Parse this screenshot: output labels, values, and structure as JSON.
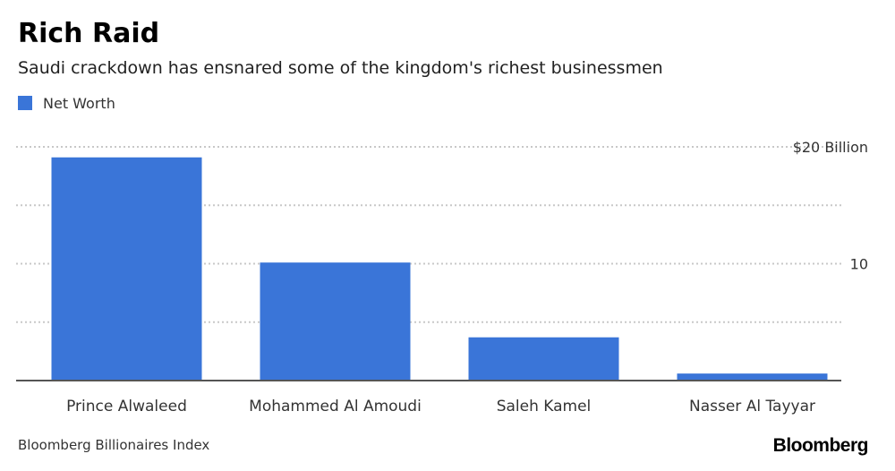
{
  "header": {
    "title": "Rich Raid",
    "subtitle": "Saudi crackdown has ensnared some of the kingdom's richest businessmen"
  },
  "footer": {
    "source": "Bloomberg Billionaires Index",
    "brand": "Bloomberg"
  },
  "colors": {
    "bar": "#3a75d8",
    "grid": "#c8c8c8",
    "axis": "#555555",
    "text": "#333333"
  },
  "chart_data": {
    "type": "bar",
    "categories": [
      "Prince Alwaleed",
      "Mohammed Al Amoudi",
      "Saleh Kamel",
      "Nasser Al Tayyar"
    ],
    "series": [
      {
        "name": "Net Worth",
        "values": [
          19.1,
          10.1,
          3.7,
          0.6
        ]
      }
    ],
    "title": "Rich Raid",
    "subtitle": "Saudi crackdown has ensnared some of the kingdom's richest businessmen",
    "xlabel": "",
    "ylabel": "",
    "ylim": [
      0,
      20
    ],
    "ytick_values": [
      0,
      5,
      10,
      15,
      20
    ],
    "ytick_labels": [
      {
        "value": 20,
        "label": "$20 Billion"
      },
      {
        "value": 10,
        "label": "10"
      }
    ],
    "grid": true,
    "legend": "top-left"
  }
}
